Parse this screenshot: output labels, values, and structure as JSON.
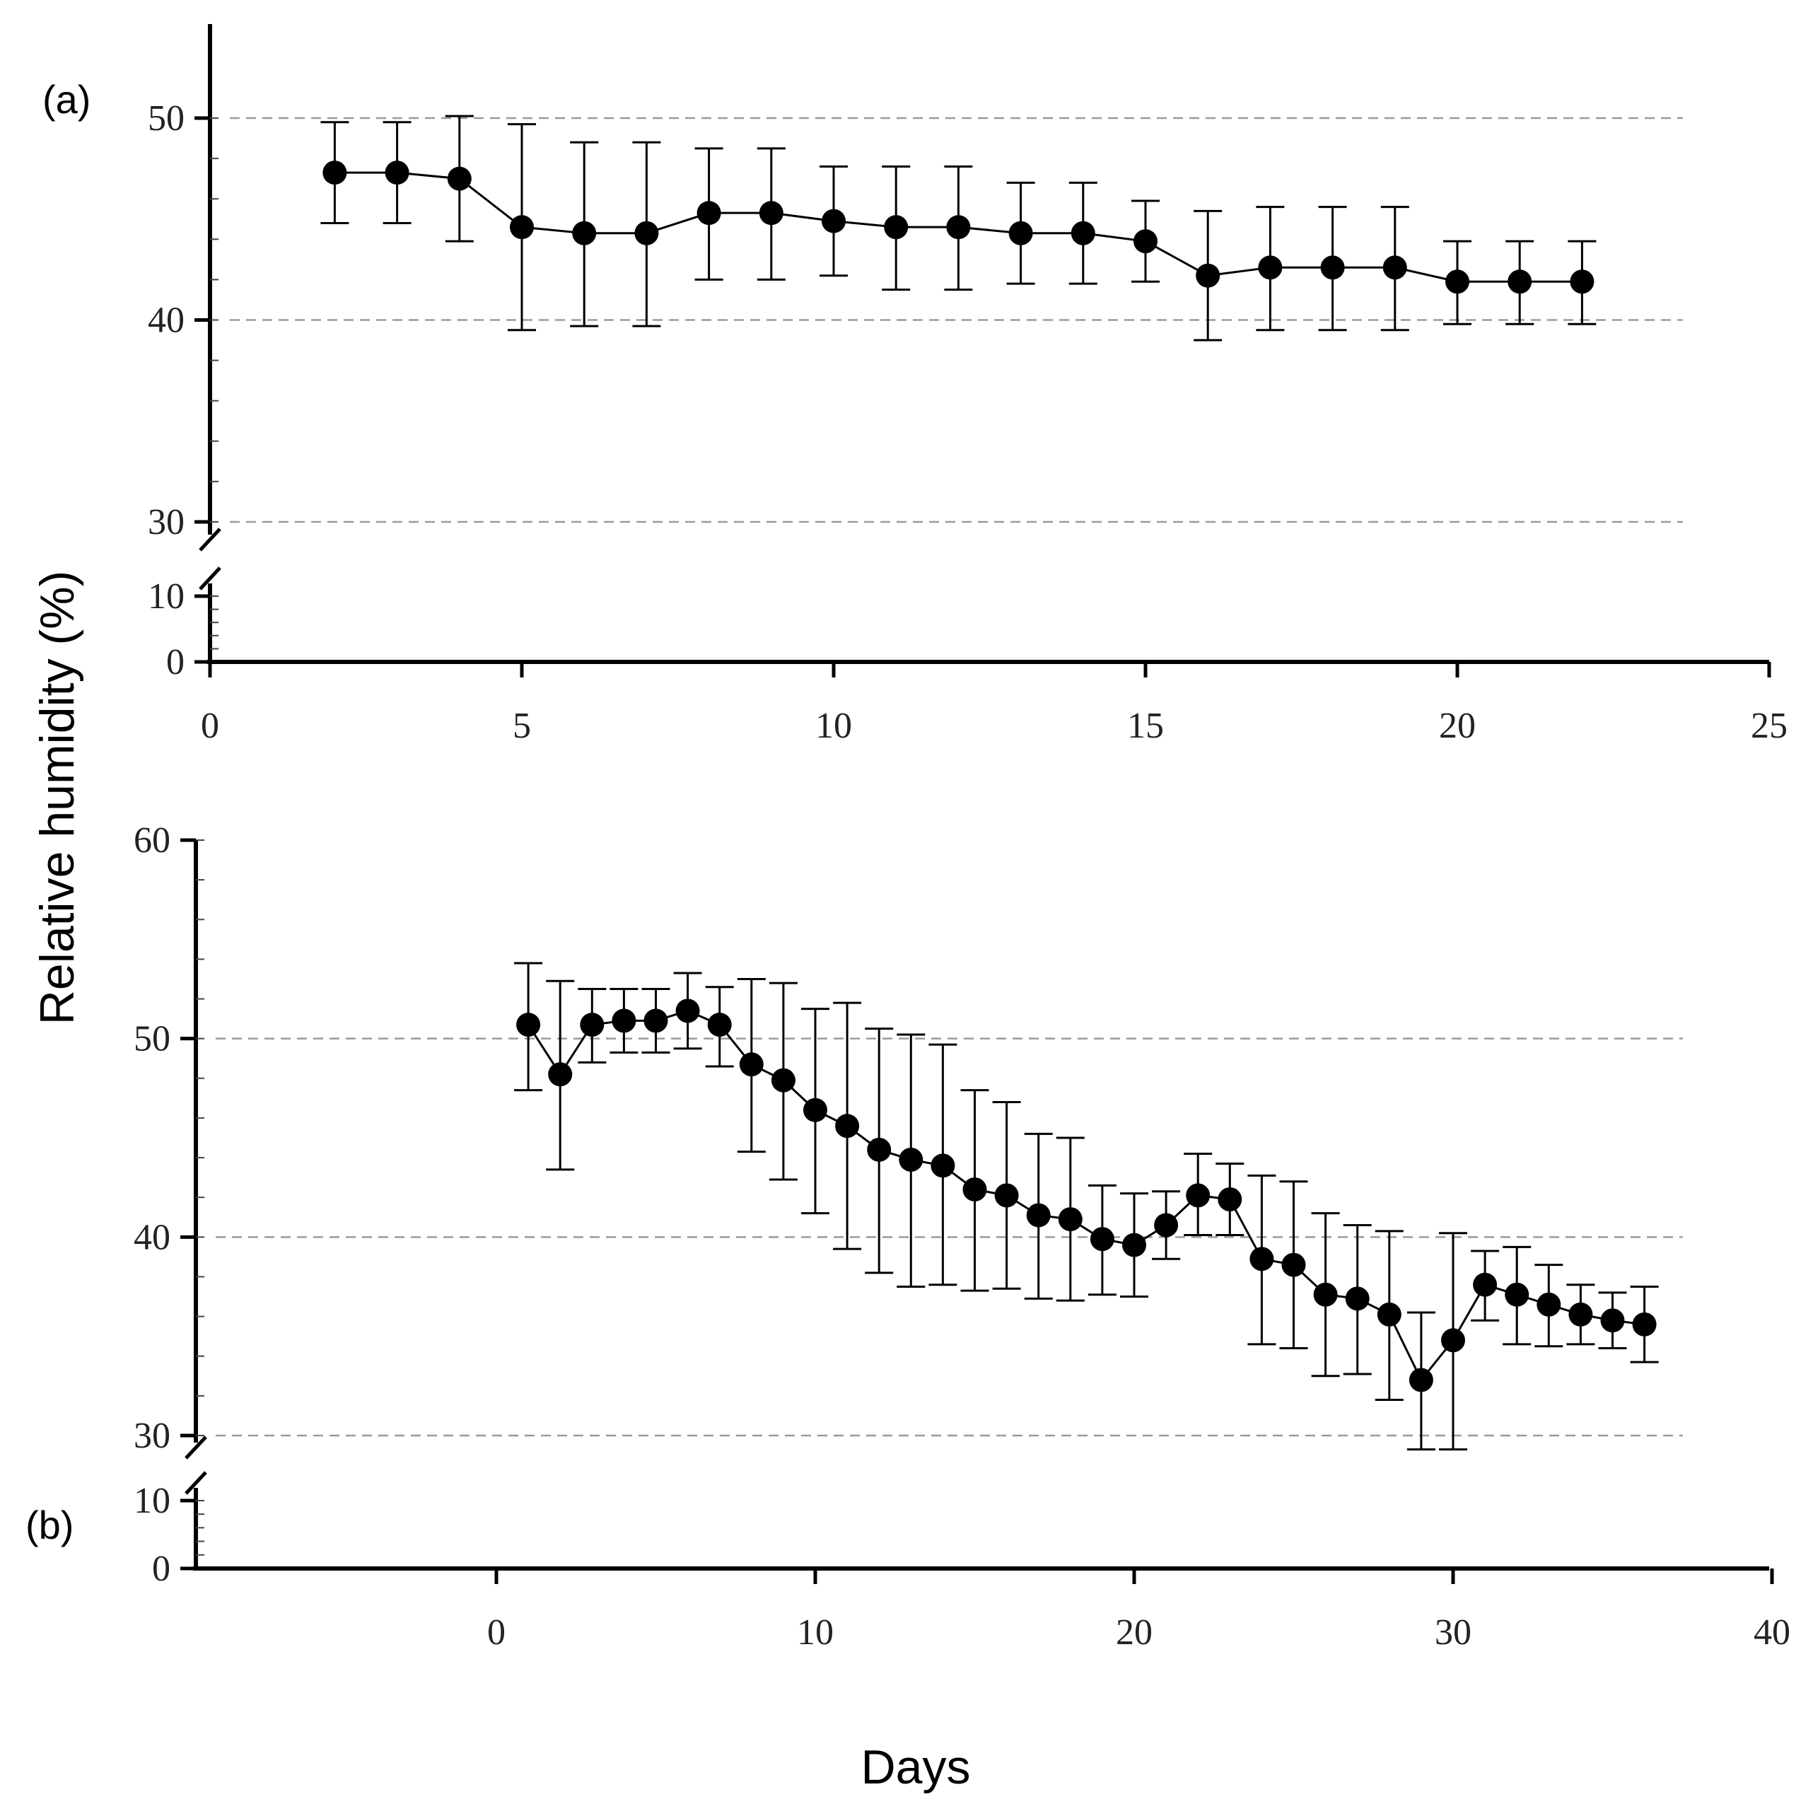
{
  "ylabel": "Relative humidity (%)",
  "xlabel": "Days",
  "chart_data": [
    {
      "type": "line",
      "panel_label": "(a)",
      "xlabel": "Days",
      "ylabel": "Relative humidity (%)",
      "xlim": [
        0,
        25
      ],
      "xticks": [
        0,
        5,
        10,
        15,
        20,
        25
      ],
      "y_break": {
        "lower_range": [
          0,
          10
        ],
        "upper_range": [
          30,
          50
        ]
      },
      "yticks": [
        0,
        10,
        30,
        40,
        50
      ],
      "grid_y": [
        30,
        40,
        50
      ],
      "series": [
        {
          "name": "Relative humidity",
          "x": [
            2,
            3,
            4,
            5,
            6,
            7,
            8,
            9,
            10,
            11,
            12,
            13,
            14,
            15,
            16,
            17,
            18,
            19,
            20,
            21,
            22
          ],
          "values": [
            47.3,
            47.3,
            47.0,
            44.6,
            44.3,
            44.3,
            45.3,
            45.3,
            44.9,
            44.6,
            44.6,
            44.3,
            44.3,
            43.9,
            42.2,
            42.6,
            42.6,
            42.6,
            41.9,
            41.9,
            41.9
          ],
          "err_low": [
            44.8,
            44.8,
            43.9,
            39.5,
            39.7,
            39.7,
            42.0,
            42.0,
            42.2,
            41.5,
            41.5,
            41.8,
            41.8,
            41.9,
            39.0,
            39.5,
            39.5,
            39.5,
            39.8,
            39.8,
            39.8
          ],
          "err_high": [
            49.8,
            49.8,
            50.1,
            49.7,
            48.8,
            48.8,
            48.5,
            48.5,
            47.6,
            47.6,
            47.6,
            46.8,
            46.8,
            45.9,
            45.4,
            45.6,
            45.6,
            45.6,
            43.9,
            43.9,
            43.9
          ]
        }
      ]
    },
    {
      "type": "line",
      "panel_label": "(b)",
      "xlabel": "Days",
      "ylabel": "Relative humidity (%)",
      "xlim": [
        -9.5,
        40
      ],
      "xticks": [
        0,
        10,
        20,
        30,
        40
      ],
      "y_break": {
        "lower_range": [
          0,
          10
        ],
        "upper_range": [
          30,
          60
        ]
      },
      "yticks": [
        0,
        10,
        30,
        40,
        50,
        60
      ],
      "grid_y": [
        30,
        40,
        50
      ],
      "series": [
        {
          "name": "Relative humidity",
          "x": [
            1,
            2,
            3,
            4,
            5,
            6,
            7,
            8,
            9,
            10,
            11,
            12,
            13,
            14,
            15,
            16,
            17,
            18,
            19,
            20,
            21,
            22,
            23,
            24,
            25,
            26,
            27,
            28,
            29,
            30,
            31,
            32,
            33,
            34,
            35,
            36
          ],
          "values": [
            50.7,
            48.2,
            50.7,
            50.9,
            50.9,
            51.4,
            50.7,
            48.7,
            47.9,
            46.4,
            45.6,
            44.4,
            43.9,
            43.6,
            42.4,
            42.1,
            41.1,
            40.9,
            39.9,
            39.6,
            40.6,
            42.1,
            41.9,
            38.9,
            38.6,
            37.1,
            36.9,
            36.1,
            32.8,
            34.8,
            37.6,
            37.1,
            36.6,
            36.1,
            35.8,
            35.6
          ],
          "err_low": [
            47.4,
            43.4,
            48.8,
            49.3,
            49.3,
            49.5,
            48.6,
            44.3,
            42.9,
            41.2,
            39.4,
            38.2,
            37.5,
            37.6,
            37.3,
            37.4,
            36.9,
            36.8,
            37.1,
            37.0,
            38.9,
            40.1,
            40.1,
            34.6,
            34.4,
            33.0,
            33.1,
            31.8,
            29.3,
            29.3,
            35.8,
            34.6,
            34.5,
            34.6,
            34.4,
            33.7
          ],
          "err_high": [
            53.8,
            52.9,
            52.5,
            52.5,
            52.5,
            53.3,
            52.6,
            53.0,
            52.8,
            51.5,
            51.8,
            50.5,
            50.2,
            49.7,
            47.4,
            46.8,
            45.2,
            45.0,
            42.6,
            42.2,
            42.3,
            44.2,
            43.7,
            43.1,
            42.8,
            41.2,
            40.6,
            40.3,
            36.2,
            40.2,
            39.3,
            39.5,
            38.6,
            37.6,
            37.2,
            37.5
          ]
        }
      ]
    }
  ]
}
